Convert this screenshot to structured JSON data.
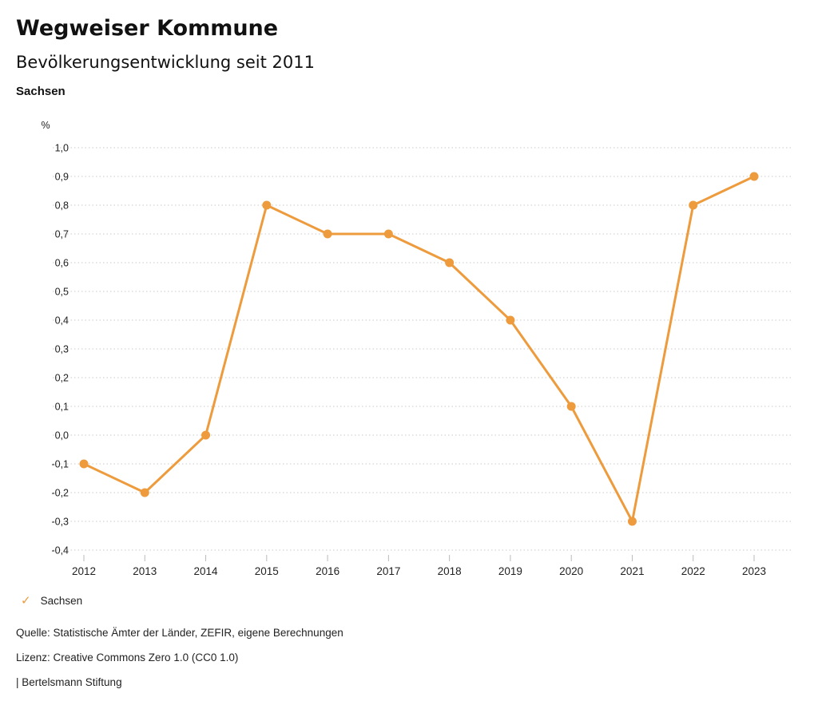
{
  "header": {
    "title": "Wegweiser Kommune",
    "subtitle": "Bevölkerungsentwicklung seit 2011",
    "region": "Sachsen"
  },
  "chart_data": {
    "type": "line",
    "title": "Bevölkerungsentwicklung seit 2011",
    "subtitle_region": "Sachsen",
    "unit_label": "%",
    "categories": [
      "2012",
      "2013",
      "2014",
      "2015",
      "2016",
      "2017",
      "2018",
      "2019",
      "2020",
      "2021",
      "2022",
      "2023"
    ],
    "series": [
      {
        "name": "Sachsen",
        "color": "#ED9B3C",
        "values": [
          -0.1,
          -0.2,
          0.0,
          0.8,
          0.7,
          0.7,
          0.6,
          0.4,
          0.1,
          -0.3,
          0.8,
          0.9
        ]
      }
    ],
    "ylim": [
      -0.4,
      1.0
    ],
    "ystep": 0.1,
    "decimal_separator": ",",
    "grid": "horizontal-dotted",
    "gridline_color": "#c9c9c9",
    "tick_color": "#bbbbbb",
    "axis_text_color": "#222222",
    "legend_position": "bottom-left"
  },
  "legend": {
    "items": [
      {
        "label": "Sachsen",
        "color": "#ED9B3C",
        "checkmark_icon": "✓",
        "checked": true
      }
    ]
  },
  "footer": {
    "source": "Quelle: Statistische Ämter der Länder, ZEFIR, eigene Berechnungen",
    "license": "Lizenz: Creative Commons Zero 1.0 (CC0 1.0)",
    "attribution": "| Bertelsmann Stiftung"
  }
}
